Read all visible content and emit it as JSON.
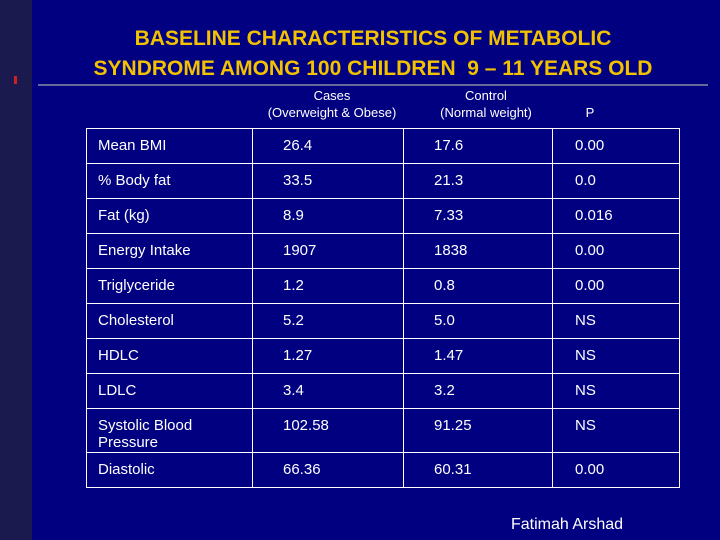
{
  "title": "BASELINE CHARACTERISTICS OF METABOLIC\nSYNDROME AMONG 100 CHILDREN  9 – 11 YEARS OLD",
  "headers": {
    "cases_line1": "Cases",
    "cases_line2": "(Overweight & Obese)",
    "control_line1": "Control",
    "control_line2": "(Normal weight)",
    "p": "P"
  },
  "rows": [
    {
      "label": "Mean BMI",
      "cases": "26.4",
      "control": "17.6",
      "p": "0.00"
    },
    {
      "label": "% Body fat",
      "cases": "33.5",
      "control": "21.3",
      "p": "0.0"
    },
    {
      "label": "Fat (kg)",
      "cases": "8.9",
      "control": "7.33",
      "p": "0.016"
    },
    {
      "label": "Energy Intake",
      "cases": "1907",
      "control": "1838",
      "p": "0.00"
    },
    {
      "label": "Triglyceride",
      "cases": "1.2",
      "control": "0.8",
      "p": "0.00"
    },
    {
      "label": "Cholesterol",
      "cases": "5.2",
      "control": "5.0",
      "p": "NS"
    },
    {
      "label": "HDLC",
      "cases": "1.27",
      "control": "1.47",
      "p": "NS"
    },
    {
      "label": "LDLC",
      "cases": "3.4",
      "control": "3.2",
      "p": "NS"
    },
    {
      "label": "Systolic Blood Pressure",
      "cases": "102.58",
      "control": "91.25",
      "p": "NS"
    },
    {
      "label": "Diastolic",
      "cases": "66.36",
      "control": "60.31",
      "p": "0.00"
    }
  ],
  "footer": "Fatimah Arshad",
  "colors": {
    "background": "#000080",
    "title": "#f2c200",
    "text": "#ffffff"
  }
}
